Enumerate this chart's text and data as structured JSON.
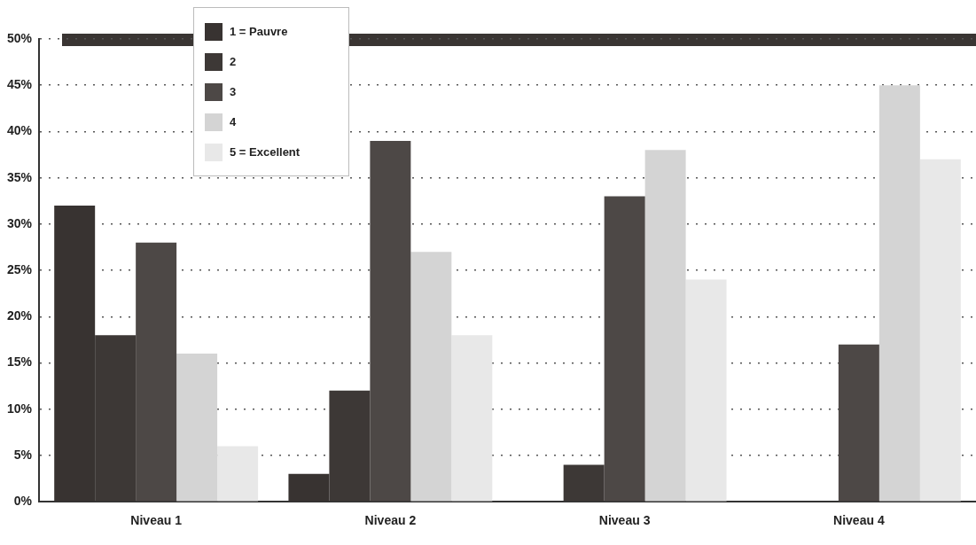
{
  "chart_data": {
    "type": "bar",
    "categories": [
      "Niveau 1",
      "Niveau 2",
      "Niveau 3",
      "Niveau 4"
    ],
    "series": [
      {
        "name": "1 = Pauvre",
        "color": "#383331",
        "values": [
          32,
          3,
          0,
          0
        ]
      },
      {
        "name": "2",
        "color": "#3d3836",
        "values": [
          18,
          12,
          4,
          0
        ]
      },
      {
        "name": "3",
        "color": "#4d4846",
        "values": [
          28,
          39,
          33,
          17
        ]
      },
      {
        "name": "4",
        "color": "#d4d4d4",
        "values": [
          16,
          27,
          38,
          45
        ]
      },
      {
        "name": "5 = Excellent",
        "color": "#e8e8e8",
        "values": [
          6,
          18,
          24,
          37
        ]
      }
    ],
    "ylim": [
      0,
      50
    ],
    "yticks": [
      {
        "value": 0,
        "label": "0%"
      },
      {
        "value": 5,
        "label": "5%"
      },
      {
        "value": 10,
        "label": "10%"
      },
      {
        "value": 15,
        "label": "15%"
      },
      {
        "value": 20,
        "label": "20%"
      },
      {
        "value": 25,
        "label": "25%"
      },
      {
        "value": 30,
        "label": "30%"
      },
      {
        "value": 35,
        "label": "35%"
      },
      {
        "value": 40,
        "label": "40%"
      },
      {
        "value": 45,
        "label": "45%"
      },
      {
        "value": 50,
        "label": "50%"
      }
    ],
    "grid": "y",
    "legend": "top left"
  }
}
